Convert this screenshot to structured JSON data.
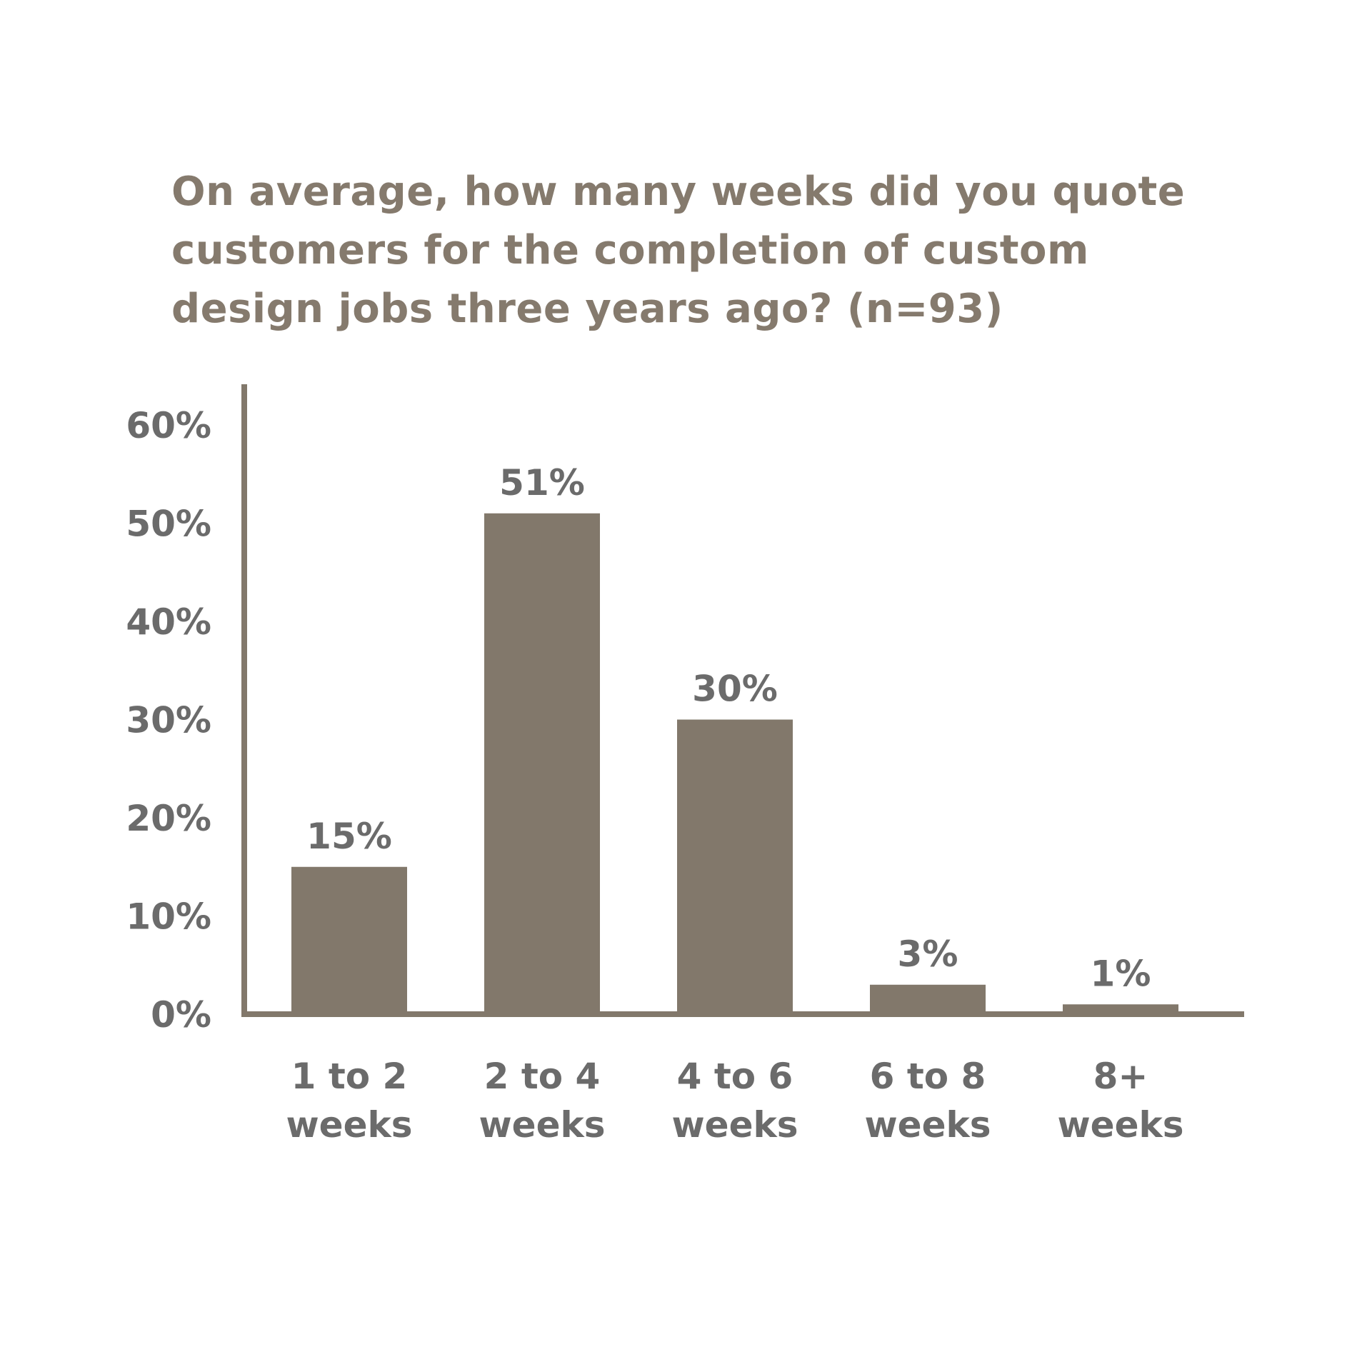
{
  "chart_data": {
    "type": "bar",
    "title": "On average, how many weeks did you quote customers for the completion of custom design jobs three years ago? (n=93)",
    "xlabel": "",
    "ylabel": "",
    "categories": [
      [
        "1 to 2",
        "weeks"
      ],
      [
        "2 to 4",
        "weeks"
      ],
      [
        "4 to 6",
        "weeks"
      ],
      [
        "6 to 8",
        "weeks"
      ],
      [
        "8+",
        "weeks"
      ]
    ],
    "values": [
      15,
      51,
      30,
      3,
      1
    ],
    "value_labels": [
      "15%",
      "51%",
      "30%",
      "3%",
      "1%"
    ],
    "yticks": [
      0,
      10,
      20,
      30,
      40,
      50,
      60
    ],
    "ytick_labels": [
      "0%",
      "10%",
      "20%",
      "30%",
      "40%",
      "50%",
      "60%"
    ],
    "ylim": [
      0,
      64
    ],
    "grid": false,
    "legend": "none",
    "colors": {
      "bar": "#82786b",
      "axis": "#82786b",
      "title": "#857a6d",
      "label": "#6b6b6b"
    }
  }
}
